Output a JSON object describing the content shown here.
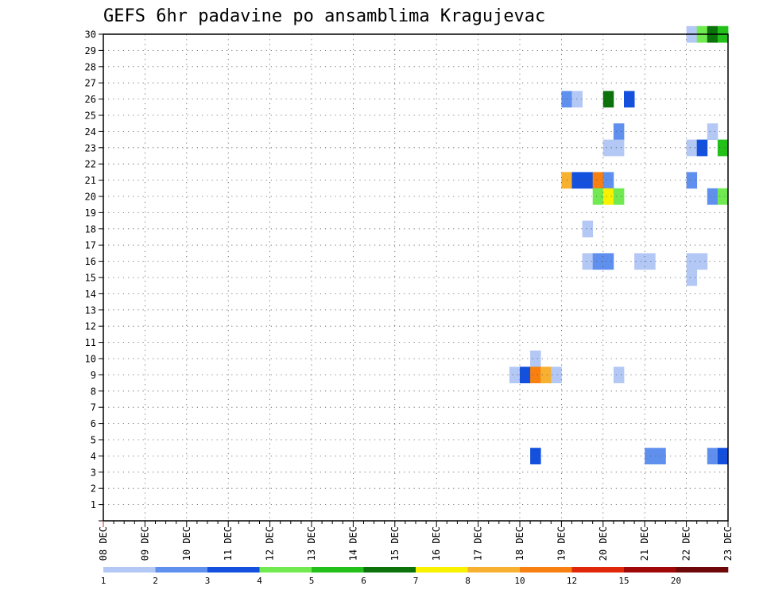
{
  "chart_data": {
    "type": "heatmap",
    "title": "GEFS 6hr padavine po ansamblima Kragujevac",
    "y_labels": [
      "1",
      "2",
      "3",
      "4",
      "5",
      "6",
      "7",
      "8",
      "9",
      "10",
      "11",
      "12",
      "13",
      "14",
      "15",
      "16",
      "17",
      "18",
      "19",
      "20",
      "21",
      "22",
      "23",
      "24",
      "25",
      "26",
      "27",
      "28",
      "29",
      "30"
    ],
    "y_range": [
      0,
      30
    ],
    "x_labels": [
      "08 DEC",
      "09 DEC",
      "10 DEC",
      "11 DEC",
      "12 DEC",
      "13 DEC",
      "14 DEC",
      "15 DEC",
      "16 DEC",
      "17 DEC",
      "18 DEC",
      "19 DEC",
      "20 DEC",
      "21 DEC",
      "22 DEC",
      "23 DEC"
    ],
    "x_step_hours": 6,
    "x_steps": 60,
    "colorbar": {
      "labels": [
        "1",
        "2",
        "3",
        "4",
        "5",
        "6",
        "7",
        "8",
        "10",
        "12",
        "15",
        "20"
      ],
      "colors": [
        "#b4c8f5",
        "#6090ee",
        "#1450de",
        "#70ea50",
        "#22c018",
        "#0c720c",
        "#f8f200",
        "#f8b030",
        "#f88010",
        "#e02808",
        "#a00808",
        "#6e0808"
      ]
    },
    "cells": [
      {
        "m": 30,
        "t": 57,
        "level": 1
      },
      {
        "m": 30,
        "t": 58,
        "level": 4
      },
      {
        "m": 30,
        "t": 59,
        "level": 6
      },
      {
        "m": 30,
        "t": 60,
        "level": 5
      },
      {
        "m": 26,
        "t": 45,
        "level": 2
      },
      {
        "m": 26,
        "t": 46,
        "level": 1
      },
      {
        "m": 26,
        "t": 49,
        "level": 6
      },
      {
        "m": 26,
        "t": 51,
        "level": 3
      },
      {
        "m": 24,
        "t": 50,
        "level": 2
      },
      {
        "m": 24,
        "t": 59,
        "level": 1
      },
      {
        "m": 23,
        "t": 49,
        "level": 1
      },
      {
        "m": 23,
        "t": 50,
        "level": 1
      },
      {
        "m": 23,
        "t": 57,
        "level": 1
      },
      {
        "m": 23,
        "t": 58,
        "level": 3
      },
      {
        "m": 23,
        "t": 60,
        "level": 5
      },
      {
        "m": 21,
        "t": 45,
        "level": 8
      },
      {
        "m": 21,
        "t": 46,
        "level": 3
      },
      {
        "m": 21,
        "t": 47,
        "level": 3
      },
      {
        "m": 21,
        "t": 48,
        "level": 9
      },
      {
        "m": 21,
        "t": 49,
        "level": 2
      },
      {
        "m": 21,
        "t": 57,
        "level": 2
      },
      {
        "m": 20,
        "t": 48,
        "level": 4
      },
      {
        "m": 20,
        "t": 49,
        "level": 7
      },
      {
        "m": 20,
        "t": 50,
        "level": 4
      },
      {
        "m": 20,
        "t": 59,
        "level": 2
      },
      {
        "m": 20,
        "t": 60,
        "level": 4
      },
      {
        "m": 18,
        "t": 47,
        "level": 1
      },
      {
        "m": 16,
        "t": 47,
        "level": 1
      },
      {
        "m": 16,
        "t": 48,
        "level": 2
      },
      {
        "m": 16,
        "t": 49,
        "level": 2
      },
      {
        "m": 16,
        "t": 52,
        "level": 1
      },
      {
        "m": 16,
        "t": 53,
        "level": 1
      },
      {
        "m": 16,
        "t": 57,
        "level": 1
      },
      {
        "m": 16,
        "t": 58,
        "level": 1
      },
      {
        "m": 15,
        "t": 57,
        "level": 1
      },
      {
        "m": 10,
        "t": 42,
        "level": 1
      },
      {
        "m": 9,
        "t": 40,
        "level": 1
      },
      {
        "m": 9,
        "t": 41,
        "level": 3
      },
      {
        "m": 9,
        "t": 42,
        "level": 9
      },
      {
        "m": 9,
        "t": 43,
        "level": 8
      },
      {
        "m": 9,
        "t": 44,
        "level": 1
      },
      {
        "m": 9,
        "t": 50,
        "level": 1
      },
      {
        "m": 4,
        "t": 42,
        "level": 3
      },
      {
        "m": 4,
        "t": 53,
        "level": 2
      },
      {
        "m": 4,
        "t": 54,
        "level": 2
      },
      {
        "m": 4,
        "t": 59,
        "level": 2
      },
      {
        "m": 4,
        "t": 60,
        "level": 3
      }
    ]
  }
}
